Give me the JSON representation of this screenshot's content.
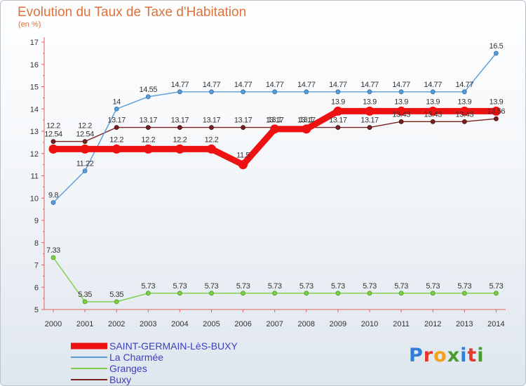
{
  "chart_data": {
    "type": "line",
    "title": "Evolution du Taux de Taxe d'Habitation",
    "subtitle": "(en %)",
    "xlabel": "",
    "ylabel": "",
    "categories": [
      "2000",
      "2001",
      "2002",
      "2003",
      "2004",
      "2005",
      "2006",
      "2007",
      "2008",
      "2009",
      "2010",
      "2011",
      "2012",
      "2013",
      "2014"
    ],
    "ylim": [
      5,
      17
    ],
    "yticks": [
      "5",
      "6",
      "7",
      "8",
      "9",
      "10",
      "11",
      "12",
      "13",
      "14",
      "15",
      "16",
      "17"
    ],
    "grid": false,
    "legend_position": "bottom-left",
    "series": [
      {
        "name": "SAINT-GERMAIN-LèS-BUXY",
        "color": "#ee1111",
        "values": [
          12.2,
          12.2,
          12.2,
          12.2,
          12.2,
          12.2,
          11.5,
          13.1,
          13.1,
          13.9,
          13.9,
          13.9,
          13.9,
          13.9,
          13.9
        ],
        "labels": [
          "",
          "",
          "12.2",
          "12.2",
          "12.2",
          "12.2",
          "11.5",
          "13.1",
          "13.1",
          "13.9",
          "13.9",
          "13.9",
          "13.9",
          "13.9",
          "13.9"
        ]
      },
      {
        "name": "La Charmée",
        "color": "#5b9bd5",
        "values": [
          9.8,
          11.22,
          14,
          14.55,
          14.77,
          14.77,
          14.77,
          14.77,
          14.77,
          14.77,
          14.77,
          14.77,
          14.77,
          14.77,
          16.5
        ],
        "labels": [
          "9.8",
          "11.22",
          "14",
          "14.55",
          "14.77",
          "14.77",
          "14.77",
          "14.77",
          "14.77",
          "14.77",
          "14.77",
          "14.77",
          "14.77",
          "14.77",
          "16.5"
        ]
      },
      {
        "name": "Granges",
        "color": "#7ccf45",
        "values": [
          7.33,
          5.35,
          5.35,
          5.73,
          5.73,
          5.73,
          5.73,
          5.73,
          5.73,
          5.73,
          5.73,
          5.73,
          5.73,
          5.73,
          5.73
        ],
        "labels": [
          "7.33",
          "5.35",
          "5.35",
          "5.73",
          "5.73",
          "5.73",
          "5.73",
          "5.73",
          "5.73",
          "5.73",
          "5.73",
          "5.73",
          "5.73",
          "5.73",
          "5.73"
        ]
      },
      {
        "name": "Buxy",
        "color": "#7a2020",
        "values": [
          12.54,
          12.54,
          13.17,
          13.17,
          13.17,
          13.17,
          13.17,
          13.17,
          13.17,
          13.17,
          13.17,
          13.43,
          13.43,
          13.43,
          13.56
        ],
        "labels": [
          "12.54",
          "12.54",
          "13.17",
          "13.17",
          "13.17",
          "13.17",
          "13.17",
          "13.17",
          "13.17",
          "13.17",
          "13.17",
          "13.43",
          "13.43",
          "13.43",
          "13.56"
        ]
      }
    ],
    "extra_labels": [
      "12.2",
      "12.2"
    ]
  },
  "logo": {
    "text": "Proxiti"
  }
}
